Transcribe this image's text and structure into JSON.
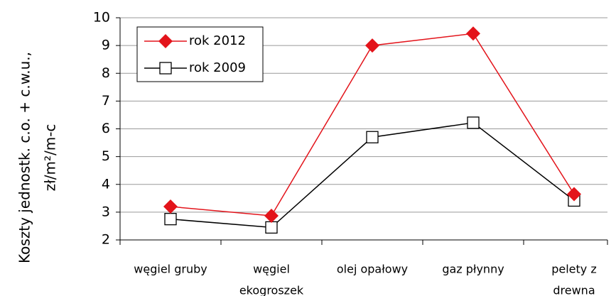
{
  "chart_data": {
    "type": "line",
    "ylabel": [
      "Koszty jednostk. c.o. + c.w.u.,",
      "zł/m²/m-c"
    ],
    "categories": [
      [
        "węgiel gruby"
      ],
      [
        "węgiel",
        "ekogroszek"
      ],
      [
        "olej opałowy"
      ],
      [
        "gaz płynny"
      ],
      [
        "pelety z",
        "drewna"
      ]
    ],
    "series": [
      {
        "name": "rok 2012",
        "color": "#e3141b",
        "marker": "diamond",
        "values": [
          3.2,
          2.87,
          9.0,
          9.43,
          3.65
        ]
      },
      {
        "name": "rok 2009",
        "color": "#000000",
        "marker": "square",
        "values": [
          2.75,
          2.45,
          5.7,
          6.22,
          3.42
        ]
      }
    ],
    "ylim": [
      2,
      10
    ],
    "yticks": [
      2,
      3,
      4,
      5,
      6,
      7,
      8,
      9,
      10
    ],
    "grid": true,
    "legend": "upper left"
  }
}
